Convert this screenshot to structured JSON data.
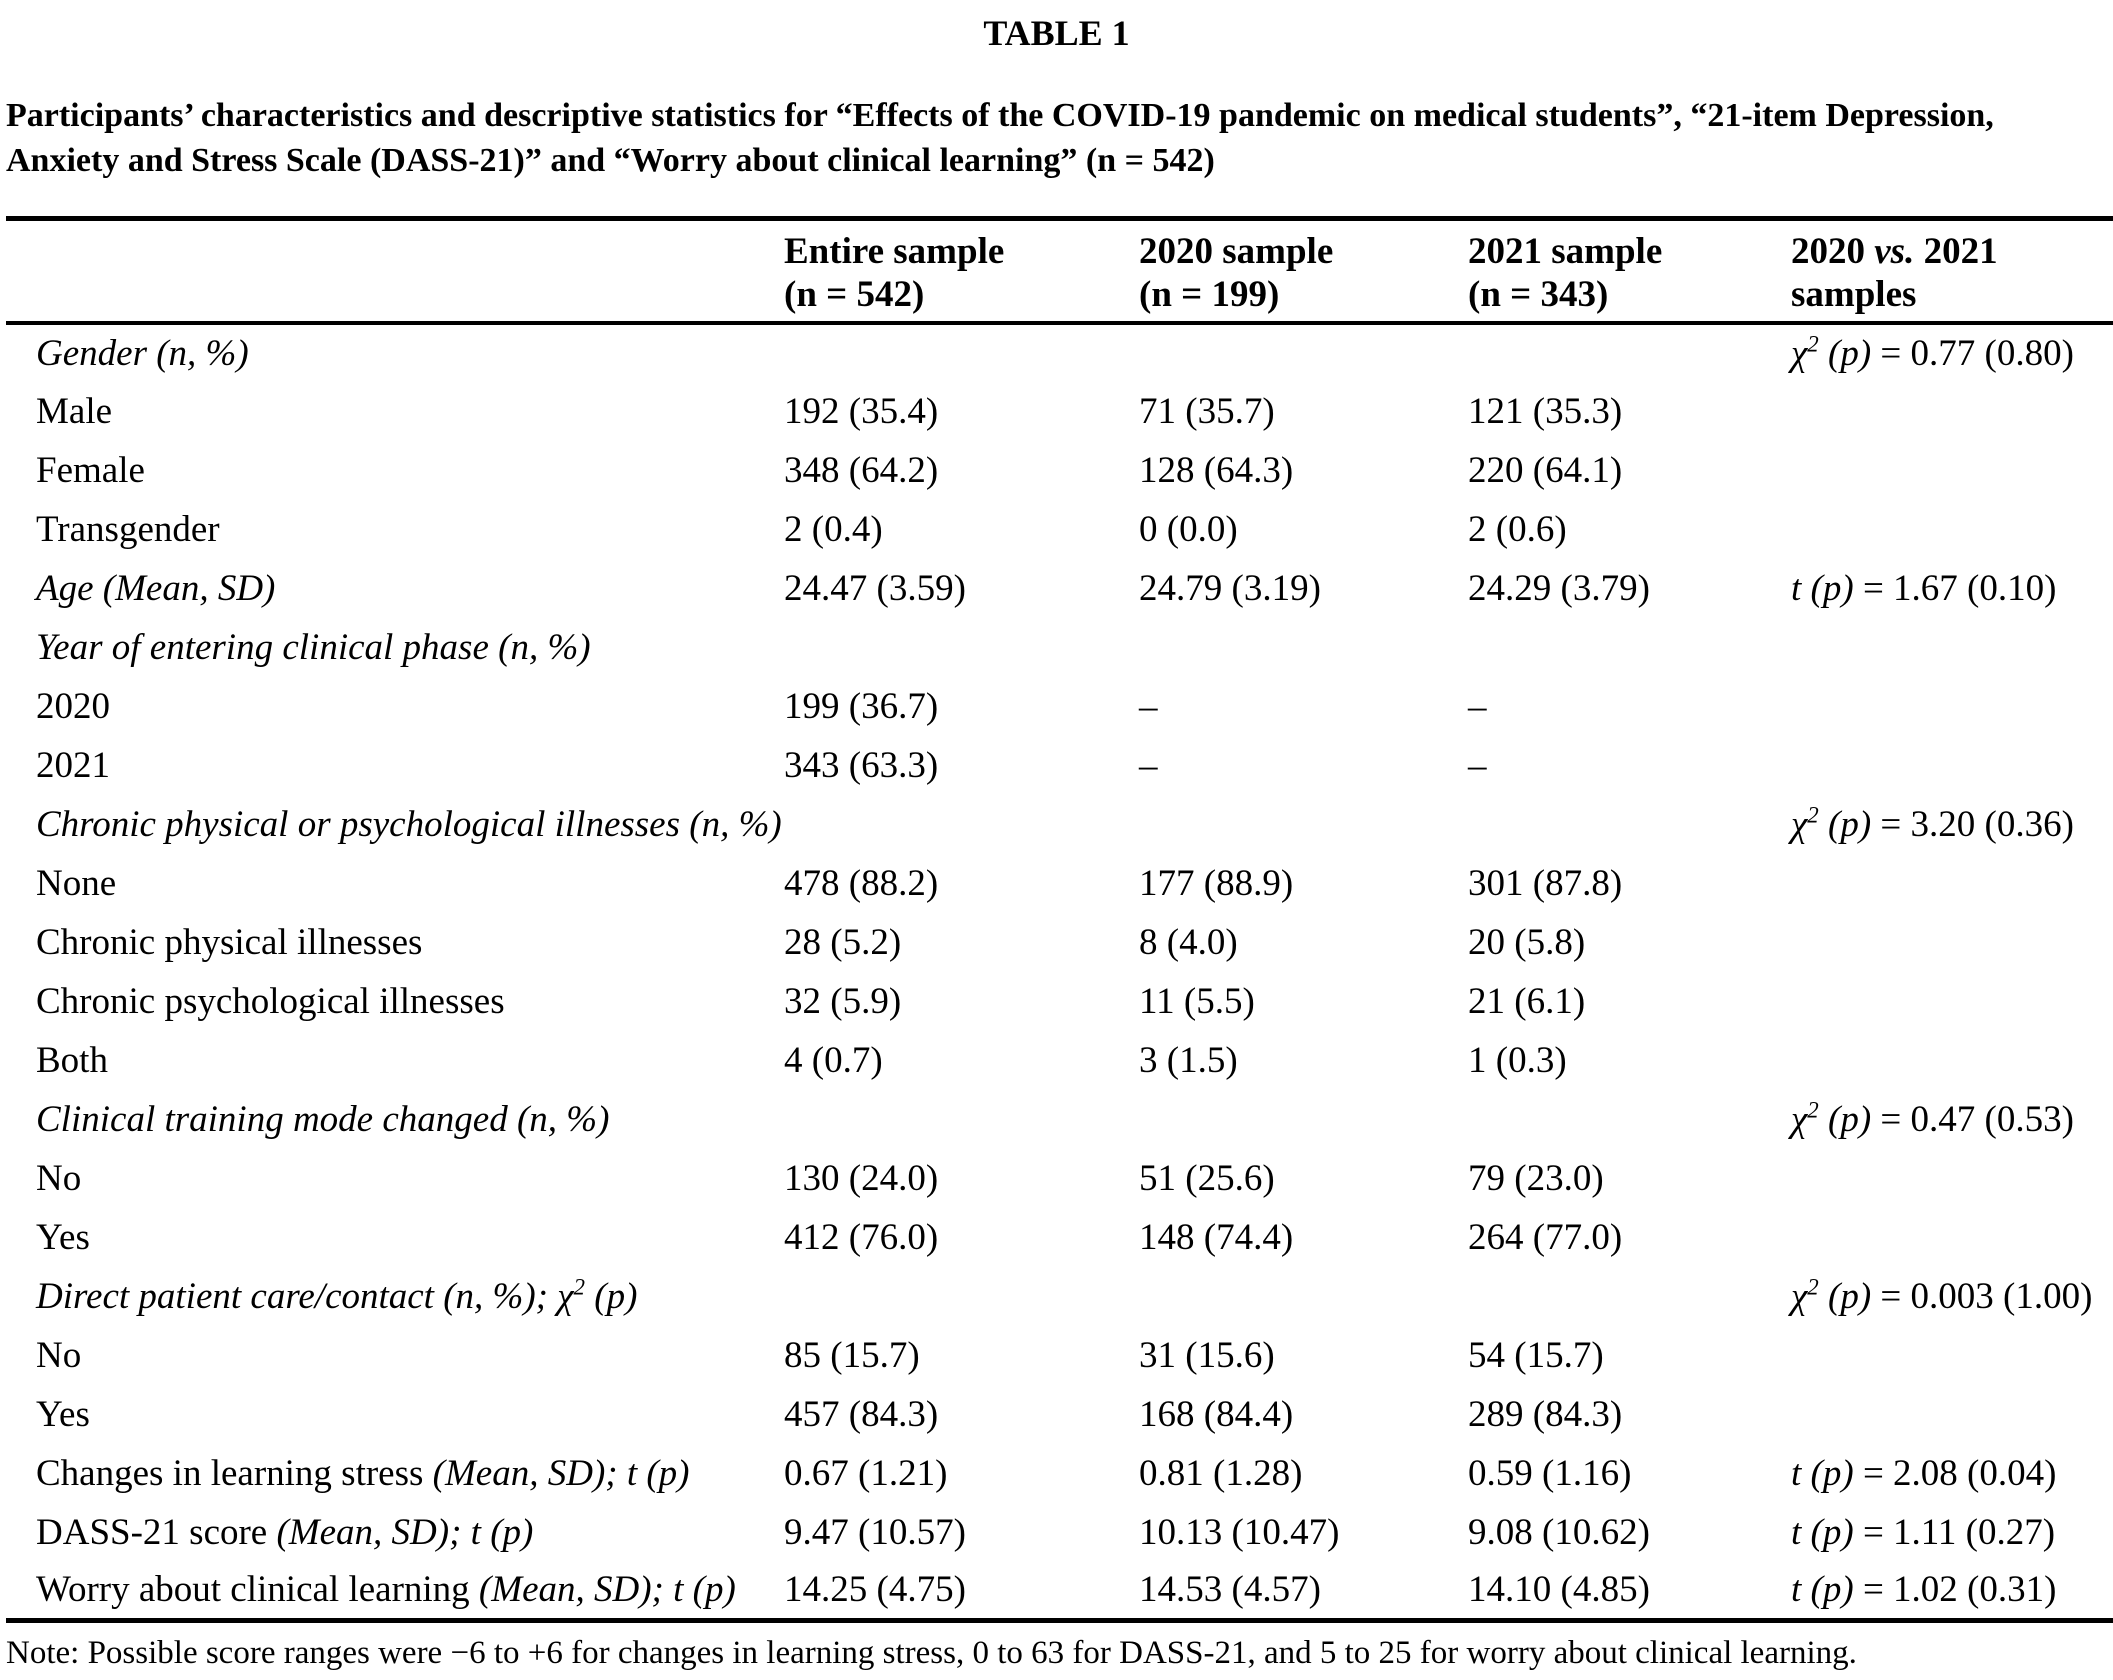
{
  "page": {
    "table_label": "TABLE 1",
    "caption_line1": "Participants’ characteristics and descriptive statistics for “Effects of the COVID-19 pandemic on medical students”, “21-item Depression,",
    "caption_line2": "Anxiety and Stress Scale (DASS-21)” and “Worry about clinical learning” (n = 542)",
    "note": "Note: Possible score ranges were −6 to +6 for changes in learning stress, 0 to 63 for DASS-21, and 5 to 25 for worry about clinical learning."
  },
  "header": {
    "stub": "",
    "col1": {
      "line1": "Entire sample",
      "line2": "(n = 542)"
    },
    "col2": {
      "line1": "2020 sample",
      "line2": "(n = 199)"
    },
    "col3": {
      "line1": "2021 sample",
      "line2": "(n = 343)"
    },
    "col4": {
      "pre": "2020 ",
      "vs": "vs.",
      "post": " 2021",
      "line2": "samples"
    }
  },
  "stat_symbols": {
    "chi2": {
      "sym": "χ",
      "sup": "2",
      "p": "(p)",
      "eq": "="
    },
    "t": {
      "sym": "t",
      "p": "(p)",
      "eq": "="
    }
  },
  "rows": [
    {
      "label": [
        {
          "text": "Gender (n, %)",
          "italic": true
        }
      ],
      "values": [
        "",
        "",
        ""
      ],
      "stat": {
        "type": "chi2",
        "value": "0.77 (0.80)"
      }
    },
    {
      "label": [
        {
          "text": "Male"
        }
      ],
      "values": [
        "192 (35.4)",
        "71 (35.7)",
        "121 (35.3)"
      ],
      "stat": null
    },
    {
      "label": [
        {
          "text": "Female"
        }
      ],
      "values": [
        "348 (64.2)",
        "128 (64.3)",
        "220 (64.1)"
      ],
      "stat": null
    },
    {
      "label": [
        {
          "text": "Transgender"
        }
      ],
      "values": [
        "2 (0.4)",
        "0 (0.0)",
        "2 (0.6)"
      ],
      "stat": null
    },
    {
      "label": [
        {
          "text": "Age (Mean, SD)",
          "italic": true
        }
      ],
      "values": [
        "24.47 (3.59)",
        "24.79 (3.19)",
        "24.29 (3.79)"
      ],
      "stat": {
        "type": "t",
        "value": "1.67 (0.10)"
      }
    },
    {
      "label": [
        {
          "text": "Year of entering clinical phase (n, %)",
          "italic": true
        }
      ],
      "values": [
        "",
        "",
        ""
      ],
      "stat": null
    },
    {
      "label": [
        {
          "text": "2020"
        }
      ],
      "values": [
        "199 (36.7)",
        "–",
        "–"
      ],
      "stat": null
    },
    {
      "label": [
        {
          "text": "2021"
        }
      ],
      "values": [
        "343 (63.3)",
        "–",
        "–"
      ],
      "stat": null
    },
    {
      "label": [
        {
          "text": "Chronic physical or psychological illnesses (n, %)",
          "italic": true
        }
      ],
      "values": [
        "",
        "",
        ""
      ],
      "stat": {
        "type": "chi2",
        "value": "3.20 (0.36)"
      }
    },
    {
      "label": [
        {
          "text": "None"
        }
      ],
      "values": [
        "478 (88.2)",
        "177 (88.9)",
        "301 (87.8)"
      ],
      "stat": null
    },
    {
      "label": [
        {
          "text": "Chronic physical illnesses"
        }
      ],
      "values": [
        "28 (5.2)",
        "8 (4.0)",
        "20 (5.8)"
      ],
      "stat": null
    },
    {
      "label": [
        {
          "text": "Chronic psychological illnesses"
        }
      ],
      "values": [
        "32 (5.9)",
        "11 (5.5)",
        "21 (6.1)"
      ],
      "stat": null
    },
    {
      "label": [
        {
          "text": "Both"
        }
      ],
      "values": [
        "4 (0.7)",
        "3 (1.5)",
        "1 (0.3)"
      ],
      "stat": null
    },
    {
      "label": [
        {
          "text": "Clinical training mode changed (n, %)",
          "italic": true
        }
      ],
      "values": [
        "",
        "",
        ""
      ],
      "stat": {
        "type": "chi2",
        "value": "0.47 (0.53)"
      }
    },
    {
      "label": [
        {
          "text": "No"
        }
      ],
      "values": [
        "130 (24.0)",
        "51 (25.6)",
        "79 (23.0)"
      ],
      "stat": null
    },
    {
      "label": [
        {
          "text": "Yes"
        }
      ],
      "values": [
        "412 (76.0)",
        "148 (74.4)",
        "264 (77.0)"
      ],
      "stat": null
    },
    {
      "label": [
        {
          "text": "Direct patient care/contact (n, %); ",
          "italic": true
        },
        {
          "text": "χ",
          "italic": true
        },
        {
          "text": "2",
          "italic": true,
          "sup": true
        },
        {
          "text": " (p)",
          "italic": true
        }
      ],
      "values": [
        "",
        "",
        ""
      ],
      "stat": {
        "type": "chi2",
        "value": "0.003 (1.00)"
      }
    },
    {
      "label": [
        {
          "text": "No"
        }
      ],
      "values": [
        "85 (15.7)",
        "31 (15.6)",
        "54 (15.7)"
      ],
      "stat": null
    },
    {
      "label": [
        {
          "text": "Yes"
        }
      ],
      "values": [
        "457 (84.3)",
        "168 (84.4)",
        "289 (84.3)"
      ],
      "stat": null
    },
    {
      "label": [
        {
          "text": "Changes in learning stress "
        },
        {
          "text": "(Mean, SD); t (p)",
          "italic": true
        }
      ],
      "values": [
        "0.67 (1.21)",
        "0.81 (1.28)",
        "0.59 (1.16)"
      ],
      "stat": {
        "type": "t",
        "value": "2.08 (0.04)"
      }
    },
    {
      "label": [
        {
          "text": "DASS-21 score "
        },
        {
          "text": "(Mean, SD); t (p)",
          "italic": true
        }
      ],
      "values": [
        "9.47 (10.57)",
        "10.13 (10.47)",
        "9.08 (10.62)"
      ],
      "stat": {
        "type": "t",
        "value": "1.11 (0.27)"
      }
    },
    {
      "label": [
        {
          "text": "Worry about clinical learning "
        },
        {
          "text": "(Mean, SD); t (p)",
          "italic": true
        }
      ],
      "values": [
        "14.25 (4.75)",
        "14.53 (4.57)",
        "14.10 (4.85)"
      ],
      "stat": {
        "type": "t",
        "value": "1.02 (0.31)"
      }
    }
  ]
}
